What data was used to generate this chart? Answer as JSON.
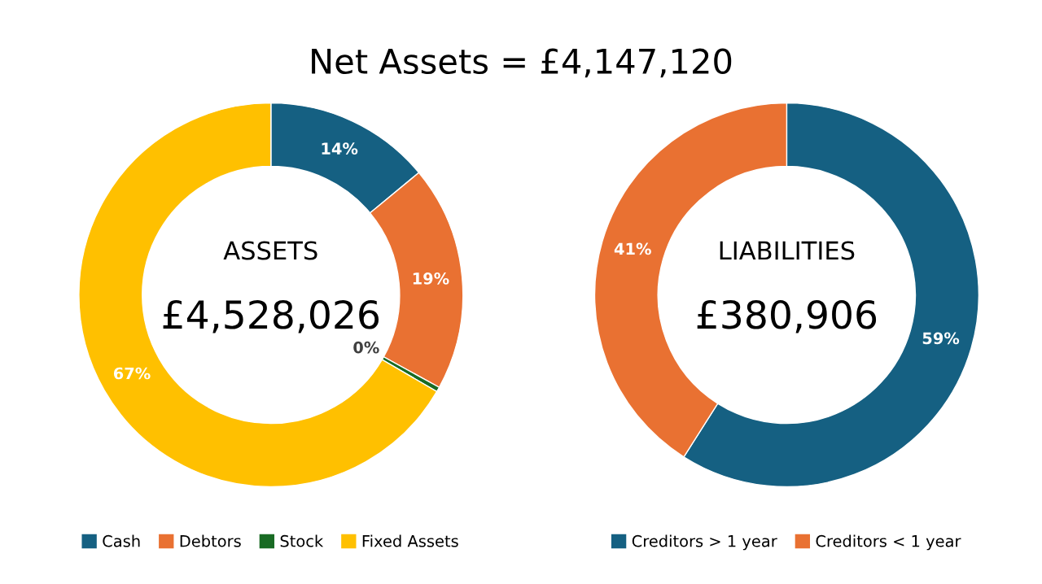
{
  "chart_data": [
    {
      "type": "donut",
      "title": "Net Assets = £4,147,120",
      "categories": [
        "Cash",
        "Debtors",
        "Stock",
        "Fixed Assets"
      ],
      "values": [
        14,
        19,
        0.4,
        66.6
      ],
      "value_labels": [
        "14%",
        "19%",
        "0%",
        "67%"
      ],
      "colors": [
        "#156082",
        "#e97132",
        "#196b24",
        "#ffc000"
      ],
      "annotations": [
        "ASSETS",
        "£4,528,026"
      ],
      "legend": "bottom"
    },
    {
      "type": "donut",
      "categories": [
        "Creditors > 1 year",
        "Creditors < 1 year"
      ],
      "values": [
        59,
        41
      ],
      "value_labels": [
        "59%",
        "41%"
      ],
      "colors": [
        "#156082",
        "#e97132"
      ],
      "annotations": [
        "LIABILITIES",
        "£380,906"
      ],
      "legend": "bottom"
    }
  ]
}
